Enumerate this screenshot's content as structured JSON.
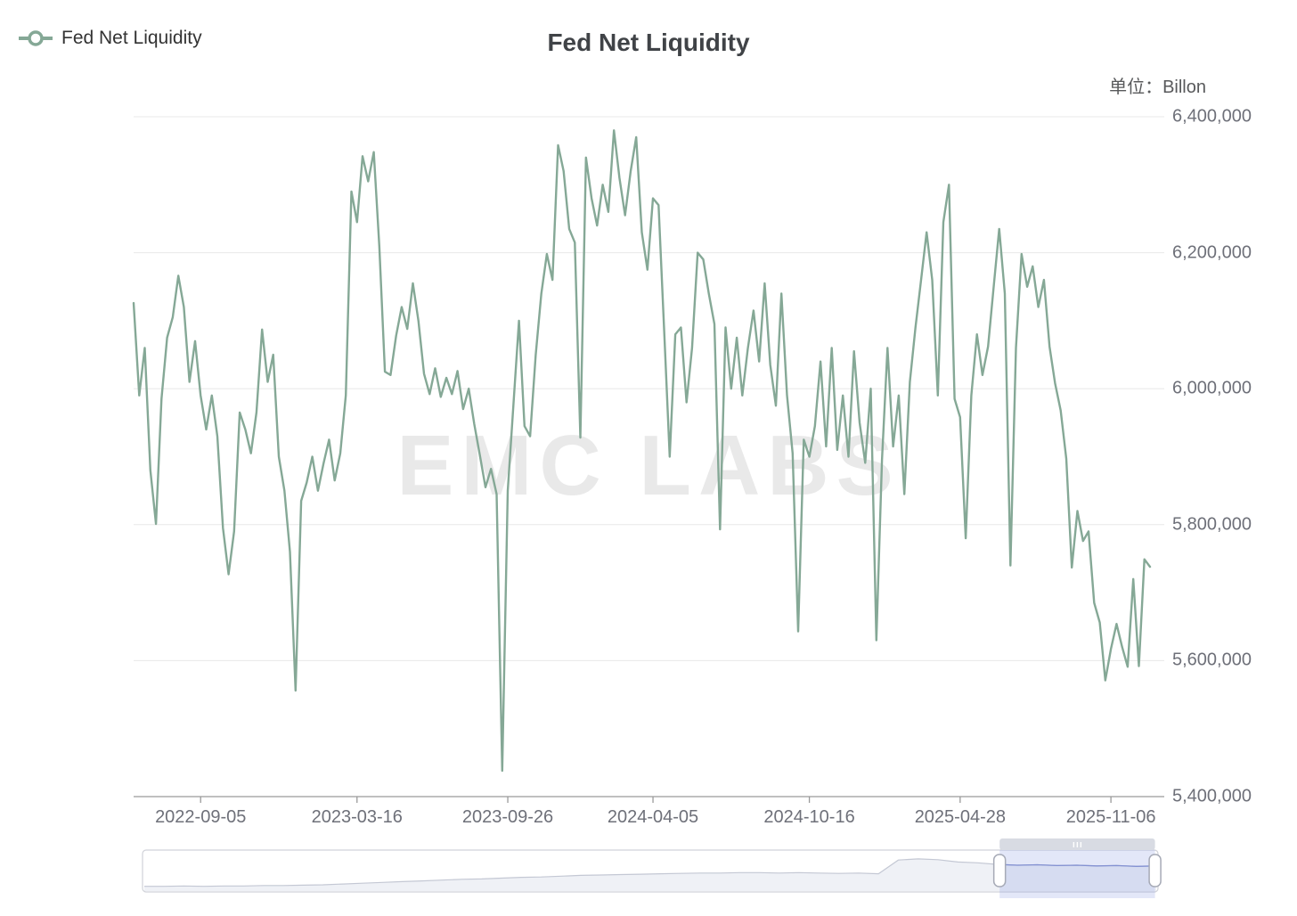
{
  "header": {
    "title": "Fed Net Liquidity",
    "unit_label": "单位：Billon"
  },
  "legend": {
    "label": "Fed Net Liquidity"
  },
  "watermark": {
    "text": "EMC LABS"
  },
  "colors": {
    "line": "#85a896",
    "grid": "#e8e8e8",
    "axis": "#9a9a9a",
    "axis_label": "#6e7079",
    "title": "#404347",
    "legend_text": "#333333",
    "watermark": "#e9e9e9",
    "slider_border": "#d0d2d9",
    "slider_line": "#c4c8d4",
    "slider_area": "#eff1f6",
    "slider_window_fill": "rgba(126,144,222,0.22)",
    "slider_window_line": "#8391d2",
    "slider_move_handle": "#d8dbe3",
    "slider_handle_fill": "#ffffff",
    "slider_handle_border": "#a6aab6"
  },
  "chart_data": {
    "type": "line",
    "title": "Fed Net Liquidity",
    "legend_position": "top-left",
    "grid": true,
    "series": [
      {
        "name": "Fed Net Liquidity",
        "color": "#85a896",
        "values": [
          6126000,
          5990000,
          6060000,
          5880000,
          5801000,
          5985000,
          6075000,
          6105000,
          6166000,
          6120000,
          6010000,
          6070000,
          5990000,
          5940000,
          5990000,
          5930000,
          5795000,
          5727000,
          5790000,
          5965000,
          5940000,
          5905000,
          5965000,
          6087000,
          6010000,
          6050000,
          5900000,
          5850000,
          5760000,
          5556000,
          5835000,
          5862000,
          5900000,
          5850000,
          5890000,
          5925000,
          5865000,
          5905000,
          5990000,
          6290000,
          6245000,
          6342000,
          6305000,
          6348000,
          6210000,
          6025000,
          6020000,
          6078000,
          6120000,
          6088000,
          6155000,
          6100000,
          6022000,
          5992000,
          6030000,
          5988000,
          6016000,
          5992000,
          6026000,
          5970000,
          6000000,
          5948000,
          5902000,
          5855000,
          5882000,
          5845000,
          5438000,
          5850000,
          5975000,
          6100000,
          5945000,
          5930000,
          6050000,
          6140000,
          6198000,
          6160000,
          6358000,
          6320000,
          6235000,
          6215000,
          5928000,
          6340000,
          6280000,
          6240000,
          6300000,
          6260000,
          6380000,
          6310000,
          6255000,
          6320000,
          6370000,
          6230000,
          6175000,
          6280000,
          6270000,
          6085000,
          5900000,
          6080000,
          6090000,
          5980000,
          6060000,
          6200000,
          6190000,
          6140000,
          6095000,
          5793000,
          6090000,
          6000000,
          6075000,
          5990000,
          6060000,
          6115000,
          6040000,
          6155000,
          6035000,
          5975000,
          6140000,
          5990000,
          5905000,
          5643000,
          5925000,
          5900000,
          5945000,
          6040000,
          5915000,
          6060000,
          5910000,
          5990000,
          5900000,
          6055000,
          5950000,
          5891000,
          6000000,
          5630000,
          5895000,
          6060000,
          5915000,
          5990000,
          5845000,
          6010000,
          6090000,
          6160000,
          6230000,
          6160000,
          5990000,
          6245000,
          6300000,
          5985000,
          5958000,
          5780000,
          5990000,
          6080000,
          6020000,
          6062000,
          6150000,
          6235000,
          6140000,
          5740000,
          6060000,
          6198000,
          6150000,
          6180000,
          6120000,
          6160000,
          6062000,
          6008000,
          5968000,
          5897000,
          5737000,
          5820000,
          5776000,
          5790000,
          5685000,
          5656000,
          5571000,
          5617000,
          5654000,
          5620000,
          5591000,
          5720000,
          5592000,
          5749000,
          5738000
        ]
      }
    ],
    "x_axis": {
      "tick_labels": [
        "2022-09-05",
        "2023-03-16",
        "2023-09-26",
        "2024-04-05",
        "2024-10-16",
        "2025-04-28",
        "2025-11-06"
      ],
      "tick_indices": [
        12,
        40,
        67,
        93,
        121,
        148,
        175
      ]
    },
    "y_axis": {
      "min": 5400000,
      "max": 6400000,
      "interval": 200000,
      "tick_values": [
        6400000,
        6200000,
        6000000,
        5800000,
        5600000,
        5400000
      ],
      "tick_labels": [
        "6,400,000",
        "6,200,000",
        "6,000,000",
        "5,800,000",
        "5,600,000",
        "5,400,000"
      ]
    },
    "slider": {
      "window_start_pct": 84.4,
      "window_end_pct": 99.7,
      "overview_heights": [
        0.12,
        0.12,
        0.13,
        0.12,
        0.13,
        0.13,
        0.14,
        0.14,
        0.15,
        0.16,
        0.18,
        0.2,
        0.22,
        0.24,
        0.26,
        0.28,
        0.3,
        0.31,
        0.33,
        0.35,
        0.36,
        0.38,
        0.4,
        0.41,
        0.42,
        0.43,
        0.44,
        0.45,
        0.46,
        0.46,
        0.47,
        0.47,
        0.46,
        0.47,
        0.46,
        0.45,
        0.46,
        0.44,
        0.79,
        0.82,
        0.8,
        0.74,
        0.72,
        0.68,
        0.66,
        0.67,
        0.65,
        0.66,
        0.64,
        0.65,
        0.63,
        0.64
      ]
    }
  }
}
